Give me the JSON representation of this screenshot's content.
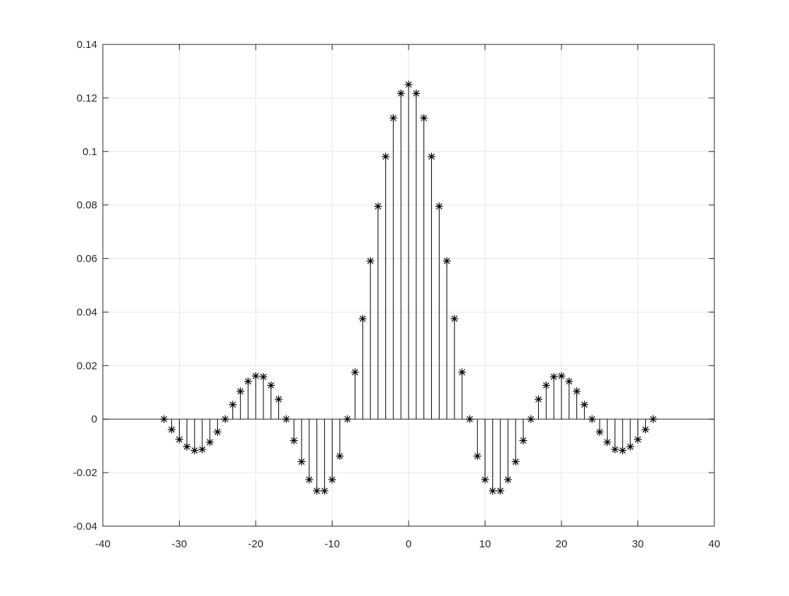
{
  "chart_data": {
    "type": "stem",
    "marker": "asterisk",
    "title": "",
    "xlabel": "",
    "ylabel": "",
    "xlim": [
      -40,
      40
    ],
    "ylim": [
      -0.04,
      0.14
    ],
    "grid": true,
    "xticks": [
      -40,
      -30,
      -20,
      -10,
      0,
      10,
      20,
      30,
      40
    ],
    "yticks": [
      -0.04,
      -0.02,
      0,
      0.02,
      0.04,
      0.06,
      0.08,
      0.1,
      0.12,
      0.14
    ],
    "xtick_labels": [
      "-40",
      "-30",
      "-20",
      "-10",
      "0",
      "10",
      "20",
      "30",
      "40"
    ],
    "ytick_labels": [
      "-0.04",
      "-0.02",
      "0",
      "0.02",
      "0.04",
      "0.06",
      "0.08",
      "0.1",
      "0.12",
      "0.14"
    ],
    "x": [
      -32,
      -31,
      -30,
      -29,
      -28,
      -27,
      -26,
      -25,
      -24,
      -23,
      -22,
      -21,
      -20,
      -19,
      -18,
      -17,
      -16,
      -15,
      -14,
      -13,
      -12,
      -11,
      -10,
      -9,
      -8,
      -7,
      -6,
      -5,
      -4,
      -3,
      -2,
      -1,
      0,
      1,
      2,
      3,
      4,
      5,
      6,
      7,
      8,
      9,
      10,
      11,
      12,
      13,
      14,
      15,
      16,
      17,
      18,
      19,
      20,
      21,
      22,
      23,
      24,
      25,
      26,
      27,
      28,
      29,
      30,
      31,
      32
    ],
    "y": [
      0.0,
      -0.0039,
      -0.0076,
      -0.0103,
      -0.0117,
      -0.0113,
      -0.0086,
      -0.0048,
      0.0,
      0.0054,
      0.0104,
      0.0141,
      0.0161,
      0.0158,
      0.0126,
      0.0074,
      0.0,
      -0.008,
      -0.0159,
      -0.0226,
      -0.0268,
      -0.0268,
      -0.0226,
      -0.0138,
      0.0,
      0.0175,
      0.0375,
      0.0591,
      0.0795,
      0.0981,
      0.1125,
      0.1217,
      0.125,
      0.1217,
      0.1125,
      0.0981,
      0.0795,
      0.0591,
      0.0375,
      0.0175,
      0.0,
      -0.0138,
      -0.0226,
      -0.0268,
      -0.0268,
      -0.0226,
      -0.0159,
      -0.008,
      0.0,
      0.0074,
      0.0126,
      0.0158,
      0.0161,
      0.0141,
      0.0104,
      0.0054,
      0.0,
      -0.0048,
      -0.0086,
      -0.0113,
      -0.0117,
      -0.0103,
      -0.0076,
      -0.0039,
      0.0
    ],
    "colors": {
      "stem": "#000000",
      "axis": "#262626",
      "grid": "#e6e6e6",
      "baseline": "#555555"
    }
  }
}
